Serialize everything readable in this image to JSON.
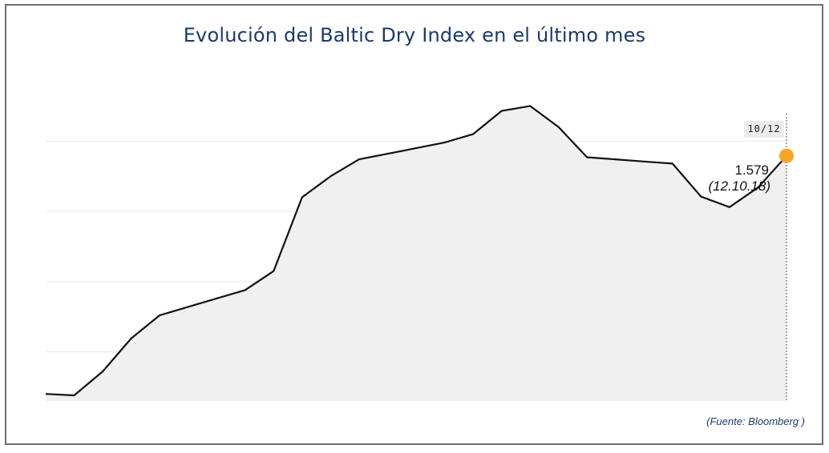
{
  "title": "Evolución del Baltic Dry Index en el último mes",
  "source": "(Fuente: Bloomberg )",
  "tooltip": {
    "date_badge": "10/12",
    "value": "1.579",
    "date": "(12.10.18)"
  },
  "colors": {
    "title": "#1b3a6b",
    "line": "#111111",
    "area": "#f0f0f0",
    "marker": "#f5a623",
    "grid": "#e6e6e6"
  },
  "chart_data": {
    "type": "area",
    "title": "Evolución del Baltic Dry Index en el último mes",
    "xlabel": "",
    "ylabel": "",
    "ylim": [
      1230,
      1630
    ],
    "grid": true,
    "y_gridlines": [
      1300,
      1400,
      1500,
      1600
    ],
    "series": [
      {
        "values": [
          1240,
          1238,
          1272,
          1319,
          1352,
          1364,
          1376,
          1388,
          1415,
          1520,
          1550,
          1574,
          1582,
          1590,
          1598,
          1610,
          1643,
          1650,
          1620,
          1577,
          1574,
          1571,
          1568,
          1521,
          1506,
          1534,
          1579
        ]
      }
    ],
    "highlight": {
      "label": "1.579",
      "date": "(12.10.18)",
      "value": 1579
    }
  }
}
